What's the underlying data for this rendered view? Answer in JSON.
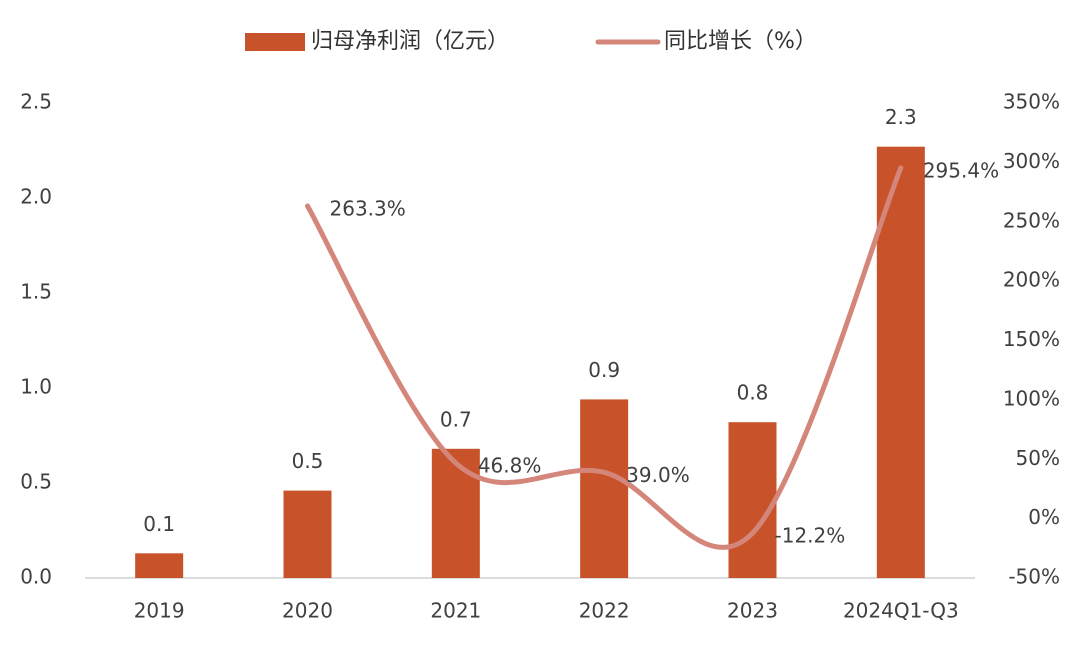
{
  "chart_data": {
    "type": "bar-line",
    "categories": [
      "2019",
      "2020",
      "2021",
      "2022",
      "2023",
      "2024Q1-Q3"
    ],
    "series": [
      {
        "name": "归母净利润（亿元）",
        "type": "bar",
        "color": "#c8532b",
        "values": [
          0.13,
          0.46,
          0.68,
          0.94,
          0.82,
          2.27
        ],
        "value_labels": [
          "0.1",
          "0.5",
          "0.7",
          "0.9",
          "0.8",
          "2.3"
        ]
      },
      {
        "name": "同比增长（%）",
        "type": "line",
        "axis": "y2",
        "color": "#d4867a",
        "values": [
          null,
          263.3,
          46.8,
          39.0,
          -12.2,
          295.4
        ],
        "value_labels": [
          null,
          "263.3%",
          "46.8%",
          "39.0%",
          "-12.2%",
          "295.4%"
        ]
      }
    ],
    "ylim": [
      0,
      2.5
    ],
    "yticks": [
      {
        "value": 0,
        "label": "0.0"
      },
      0.5,
      {
        "value": 1,
        "label": "1.0"
      },
      1.5,
      {
        "value": 2,
        "label": "2.0"
      },
      2.5
    ],
    "y2lim": [
      -50,
      350
    ],
    "y2ticks": [
      {
        "value": -50,
        "label": "-50%"
      },
      {
        "value": 0,
        "label": "0%"
      },
      {
        "value": 50,
        "label": "50%"
      },
      {
        "value": 100,
        "label": "100%"
      },
      {
        "value": 150,
        "label": "150%"
      },
      {
        "value": 200,
        "label": "200%"
      },
      {
        "value": 250,
        "label": "250%"
      },
      {
        "value": 300,
        "label": "300%"
      },
      {
        "value": 350,
        "label": "350%"
      }
    ],
    "legend": "top"
  }
}
